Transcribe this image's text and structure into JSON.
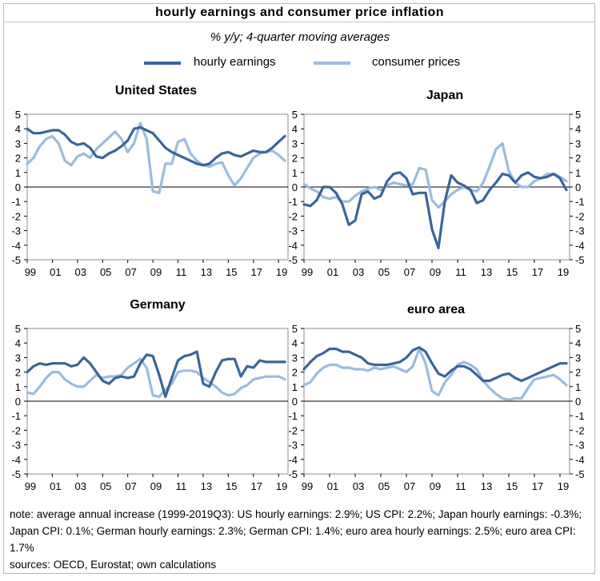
{
  "title": "hourly earnings and consumer price inflation",
  "subtitle": "% y/y; 4-quarter moving averages",
  "colors": {
    "hourly_earnings": "#3a6599",
    "consumer_prices": "#9bbcdd"
  },
  "legend": {
    "hourly": "hourly earnings",
    "cpi": "consumer prices"
  },
  "note": "note: average annual increase (1999-2019Q3): US hourly earnings: 2.9%; US CPI: 2.2%; Japan hourly earnings: -0.3%; Japan CPI: 0.1%; German hourly earnings: 2.3%; German CPI: 1.4%; euro area hourly earnings: 2.5%; euro area CPI: 1.7%",
  "sources": "sources: OECD, Eurostat; own calculations",
  "chart_data": [
    {
      "type": "line",
      "title": "United States",
      "xlabels": [
        "99",
        "01",
        "03",
        "05",
        "07",
        "09",
        "11",
        "13",
        "15",
        "17",
        "19"
      ],
      "x_range": [
        1999,
        2019.75
      ],
      "ylim": [
        -5,
        5
      ],
      "yticks": [
        -5,
        -4,
        -3,
        -2,
        -1,
        0,
        1,
        2,
        3,
        4,
        5
      ],
      "y_axis_side": "left",
      "series": [
        {
          "name": "hourly earnings",
          "x": [
            1999,
            1999.5,
            2000,
            2000.5,
            2001,
            2001.5,
            2002,
            2002.5,
            2003,
            2003.5,
            2004,
            2004.5,
            2005,
            2005.5,
            2006,
            2006.5,
            2007,
            2007.5,
            2008,
            2008.5,
            2009,
            2009.5,
            2010,
            2010.5,
            2011,
            2011.5,
            2012,
            2012.5,
            2013,
            2013.5,
            2014,
            2014.5,
            2015,
            2015.5,
            2016,
            2016.5,
            2017,
            2017.5,
            2018,
            2018.5,
            2019,
            2019.5
          ],
          "y": [
            4.0,
            3.7,
            3.7,
            3.8,
            3.9,
            3.9,
            3.6,
            3.1,
            2.9,
            3.0,
            2.7,
            2.1,
            2.0,
            2.3,
            2.5,
            2.8,
            3.2,
            4.0,
            4.1,
            3.9,
            3.7,
            3.2,
            2.7,
            2.4,
            2.2,
            2.0,
            1.8,
            1.6,
            1.5,
            1.6,
            2.0,
            2.3,
            2.4,
            2.2,
            2.1,
            2.3,
            2.5,
            2.4,
            2.4,
            2.7,
            3.1,
            3.5
          ]
        },
        {
          "name": "consumer prices",
          "x": [
            1999,
            1999.5,
            2000,
            2000.5,
            2001,
            2001.5,
            2002,
            2002.5,
            2003,
            2003.5,
            2004,
            2004.5,
            2005,
            2005.5,
            2006,
            2006.5,
            2007,
            2007.5,
            2008,
            2008.5,
            2009,
            2009.5,
            2010,
            2010.5,
            2011,
            2011.5,
            2012,
            2012.5,
            2013,
            2013.5,
            2014,
            2014.5,
            2015,
            2015.5,
            2016,
            2016.5,
            2017,
            2017.5,
            2018,
            2018.5,
            2019,
            2019.5
          ],
          "y": [
            1.6,
            2.0,
            2.8,
            3.3,
            3.5,
            3.0,
            1.8,
            1.5,
            2.1,
            2.3,
            2.0,
            2.6,
            3.0,
            3.4,
            3.8,
            3.3,
            2.4,
            3.0,
            4.4,
            3.3,
            -0.3,
            -0.4,
            1.6,
            1.6,
            3.1,
            3.3,
            2.3,
            1.8,
            1.5,
            1.4,
            1.6,
            1.7,
            0.8,
            0.1,
            0.6,
            1.3,
            2.0,
            2.3,
            2.4,
            2.5,
            2.2,
            1.8
          ]
        }
      ]
    },
    {
      "type": "line",
      "title": "Japan",
      "xlabels": [
        "99",
        "01",
        "03",
        "05",
        "07",
        "09",
        "11",
        "13",
        "15",
        "17",
        "19"
      ],
      "x_range": [
        1999,
        2019.75
      ],
      "ylim": [
        -5,
        5
      ],
      "yticks": [
        -5,
        -4,
        -3,
        -2,
        -1,
        0,
        1,
        2,
        3,
        4,
        5
      ],
      "y_axis_side": "both",
      "series": [
        {
          "name": "hourly earnings",
          "x": [
            1999,
            1999.5,
            2000,
            2000.5,
            2001,
            2001.5,
            2002,
            2002.5,
            2003,
            2003.5,
            2004,
            2004.5,
            2005,
            2005.5,
            2006,
            2006.5,
            2007,
            2007.5,
            2008,
            2008.5,
            2009,
            2009.5,
            2010,
            2010.5,
            2011,
            2011.5,
            2012,
            2012.5,
            2013,
            2013.5,
            2014,
            2014.5,
            2015,
            2015.5,
            2016,
            2016.5,
            2017,
            2017.5,
            2018,
            2018.5,
            2019,
            2019.5
          ],
          "y": [
            -1.2,
            -1.3,
            -0.9,
            0.0,
            0.0,
            -0.4,
            -1.2,
            -2.6,
            -2.3,
            -0.5,
            -0.3,
            -0.8,
            -0.6,
            0.4,
            0.9,
            1.0,
            0.6,
            -0.5,
            -0.4,
            -0.4,
            -2.9,
            -4.2,
            -1.0,
            0.8,
            0.3,
            0.1,
            -0.2,
            -1.1,
            -0.9,
            -0.2,
            0.3,
            0.9,
            0.8,
            0.3,
            0.8,
            1.0,
            0.7,
            0.6,
            0.7,
            0.9,
            0.6,
            -0.2
          ]
        },
        {
          "name": "consumer prices",
          "x": [
            1999,
            1999.5,
            2000,
            2000.5,
            2001,
            2001.5,
            2002,
            2002.5,
            2003,
            2003.5,
            2004,
            2004.5,
            2005,
            2005.5,
            2006,
            2006.5,
            2007,
            2007.5,
            2008,
            2008.5,
            2009,
            2009.5,
            2010,
            2010.5,
            2011,
            2011.5,
            2012,
            2012.5,
            2013,
            2013.5,
            2014,
            2014.5,
            2015,
            2015.5,
            2016,
            2016.5,
            2017,
            2017.5,
            2018,
            2018.5,
            2019,
            2019.5
          ],
          "y": [
            0.2,
            -0.1,
            -0.3,
            -0.7,
            -0.8,
            -0.7,
            -1.0,
            -1.0,
            -0.6,
            -0.3,
            -0.1,
            0.0,
            -0.2,
            0.1,
            0.3,
            0.2,
            0.1,
            0.2,
            1.3,
            1.2,
            -0.9,
            -1.4,
            -1.0,
            -0.5,
            -0.2,
            0.0,
            -0.2,
            -0.3,
            0.3,
            1.4,
            2.6,
            3.0,
            1.1,
            0.3,
            0.0,
            0.0,
            0.4,
            0.6,
            0.9,
            0.9,
            0.7,
            0.4
          ]
        }
      ]
    },
    {
      "type": "line",
      "title": "Germany",
      "xlabels": [
        "99",
        "01",
        "03",
        "05",
        "07",
        "09",
        "11",
        "13",
        "15",
        "17",
        "19"
      ],
      "x_range": [
        1999,
        2019.75
      ],
      "ylim": [
        -5,
        5
      ],
      "yticks": [
        -5,
        -4,
        -3,
        -2,
        -1,
        0,
        1,
        2,
        3,
        4,
        5
      ],
      "y_axis_side": "left",
      "series": [
        {
          "name": "hourly earnings",
          "x": [
            1999,
            1999.5,
            2000,
            2000.5,
            2001,
            2001.5,
            2002,
            2002.5,
            2003,
            2003.5,
            2004,
            2004.5,
            2005,
            2005.5,
            2006,
            2006.5,
            2007,
            2007.5,
            2008,
            2008.5,
            2009,
            2009.5,
            2010,
            2010.5,
            2011,
            2011.5,
            2012,
            2012.5,
            2013,
            2013.5,
            2014,
            2014.5,
            2015,
            2015.5,
            2016,
            2016.5,
            2017,
            2017.5,
            2018,
            2018.5,
            2019,
            2019.5
          ],
          "y": [
            2.0,
            2.4,
            2.6,
            2.5,
            2.6,
            2.6,
            2.6,
            2.4,
            2.5,
            3.0,
            2.6,
            2.0,
            1.4,
            1.2,
            1.6,
            1.7,
            1.6,
            1.7,
            2.6,
            3.2,
            3.1,
            1.8,
            0.3,
            1.6,
            2.8,
            3.1,
            3.2,
            3.4,
            1.2,
            1.0,
            2.0,
            2.8,
            2.9,
            2.9,
            1.7,
            2.4,
            2.3,
            2.8,
            2.7,
            2.7,
            2.7,
            2.7
          ]
        },
        {
          "name": "consumer prices",
          "x": [
            1999,
            1999.5,
            2000,
            2000.5,
            2001,
            2001.5,
            2002,
            2002.5,
            2003,
            2003.5,
            2004,
            2004.5,
            2005,
            2005.5,
            2006,
            2006.5,
            2007,
            2007.5,
            2008,
            2008.5,
            2009,
            2009.5,
            2010,
            2010.5,
            2011,
            2011.5,
            2012,
            2012.5,
            2013,
            2013.5,
            2014,
            2014.5,
            2015,
            2015.5,
            2016,
            2016.5,
            2017,
            2017.5,
            2018,
            2018.5,
            2019,
            2019.5
          ],
          "y": [
            0.6,
            0.5,
            1.0,
            1.6,
            2.0,
            2.0,
            1.5,
            1.2,
            1.0,
            1.0,
            1.4,
            1.8,
            1.6,
            1.7,
            1.7,
            1.8,
            2.3,
            2.6,
            2.9,
            2.3,
            0.4,
            0.3,
            0.8,
            1.2,
            2.0,
            2.1,
            2.1,
            2.0,
            1.6,
            1.3,
            1.0,
            0.6,
            0.4,
            0.5,
            0.9,
            1.1,
            1.5,
            1.6,
            1.7,
            1.7,
            1.7,
            1.5
          ]
        }
      ]
    },
    {
      "type": "line",
      "title": "euro area",
      "xlabels": [
        "99",
        "01",
        "03",
        "05",
        "07",
        "09",
        "11",
        "13",
        "15",
        "17",
        "19"
      ],
      "x_range": [
        1999,
        2019.75
      ],
      "ylim": [
        -5,
        5
      ],
      "yticks": [
        -5,
        -4,
        -3,
        -2,
        -1,
        0,
        1,
        2,
        3,
        4,
        5
      ],
      "y_axis_side": "both",
      "series": [
        {
          "name": "hourly earnings",
          "x": [
            1999,
            1999.5,
            2000,
            2000.5,
            2001,
            2001.5,
            2002,
            2002.5,
            2003,
            2003.5,
            2004,
            2004.5,
            2005,
            2005.5,
            2006,
            2006.5,
            2007,
            2007.5,
            2008,
            2008.5,
            2009,
            2009.5,
            2010,
            2010.5,
            2011,
            2011.5,
            2012,
            2012.5,
            2013,
            2013.5,
            2014,
            2014.5,
            2015,
            2015.5,
            2016,
            2016.5,
            2017,
            2017.5,
            2018,
            2018.5,
            2019,
            2019.5
          ],
          "y": [
            2.2,
            2.7,
            3.1,
            3.3,
            3.6,
            3.6,
            3.4,
            3.4,
            3.2,
            3.0,
            2.6,
            2.5,
            2.5,
            2.5,
            2.6,
            2.7,
            3.0,
            3.5,
            3.7,
            3.4,
            2.6,
            1.9,
            1.7,
            2.1,
            2.4,
            2.4,
            2.2,
            1.8,
            1.4,
            1.4,
            1.6,
            1.8,
            1.9,
            1.6,
            1.4,
            1.6,
            1.8,
            2.0,
            2.2,
            2.4,
            2.6,
            2.6
          ]
        },
        {
          "name": "consumer prices",
          "x": [
            1999,
            1999.5,
            2000,
            2000.5,
            2001,
            2001.5,
            2002,
            2002.5,
            2003,
            2003.5,
            2004,
            2004.5,
            2005,
            2005.5,
            2006,
            2006.5,
            2007,
            2007.5,
            2008,
            2008.5,
            2009,
            2009.5,
            2010,
            2010.5,
            2011,
            2011.5,
            2012,
            2012.5,
            2013,
            2013.5,
            2014,
            2014.5,
            2015,
            2015.5,
            2016,
            2016.5,
            2017,
            2017.5,
            2018,
            2018.5,
            2019,
            2019.5
          ],
          "y": [
            1.1,
            1.3,
            1.9,
            2.3,
            2.5,
            2.5,
            2.3,
            2.3,
            2.2,
            2.2,
            2.1,
            2.3,
            2.2,
            2.3,
            2.4,
            2.2,
            2.0,
            2.4,
            3.6,
            2.6,
            0.7,
            0.4,
            1.3,
            1.8,
            2.5,
            2.7,
            2.5,
            2.2,
            1.4,
            0.9,
            0.5,
            0.2,
            0.1,
            0.2,
            0.2,
            0.9,
            1.5,
            1.6,
            1.7,
            1.8,
            1.5,
            1.1
          ]
        }
      ]
    }
  ]
}
